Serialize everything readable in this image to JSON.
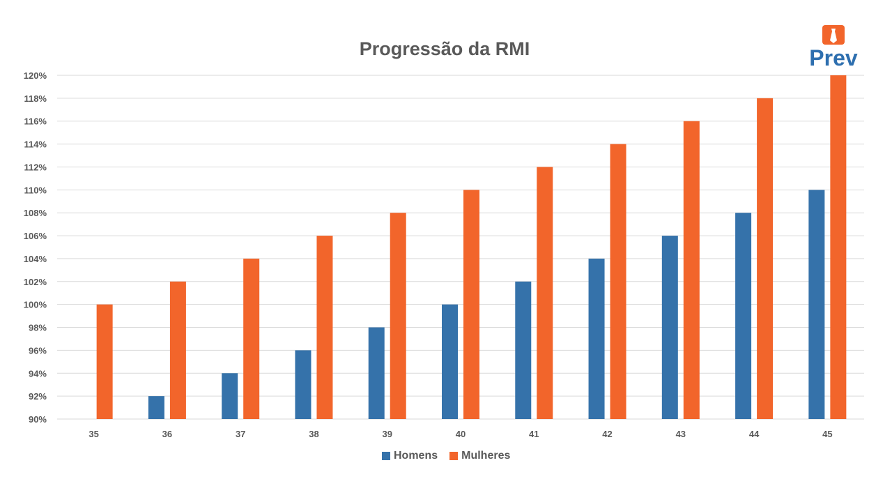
{
  "chart_data": {
    "type": "bar",
    "title": "Progressão da RMI",
    "categories": [
      "35",
      "36",
      "37",
      "38",
      "39",
      "40",
      "41",
      "42",
      "43",
      "44",
      "45"
    ],
    "series": [
      {
        "name": "Homens",
        "color": "#3572aa",
        "values": [
          90,
          92,
          94,
          96,
          98,
          100,
          102,
          104,
          106,
          108,
          110
        ]
      },
      {
        "name": "Mulheres",
        "color": "#f2652b",
        "values": [
          100,
          102,
          104,
          106,
          108,
          110,
          112,
          114,
          116,
          118,
          120
        ]
      }
    ],
    "yticks": [
      "90%",
      "92%",
      "94%",
      "96%",
      "98%",
      "100%",
      "102%",
      "104%",
      "106%",
      "108%",
      "110%",
      "112%",
      "114%",
      "116%",
      "118%",
      "120%"
    ],
    "ylim": [
      90,
      120
    ],
    "grid": true,
    "legend": "bottom"
  },
  "logo": {
    "text": "Prev",
    "color": "#2e6faf",
    "accent": "#f2652b"
  }
}
